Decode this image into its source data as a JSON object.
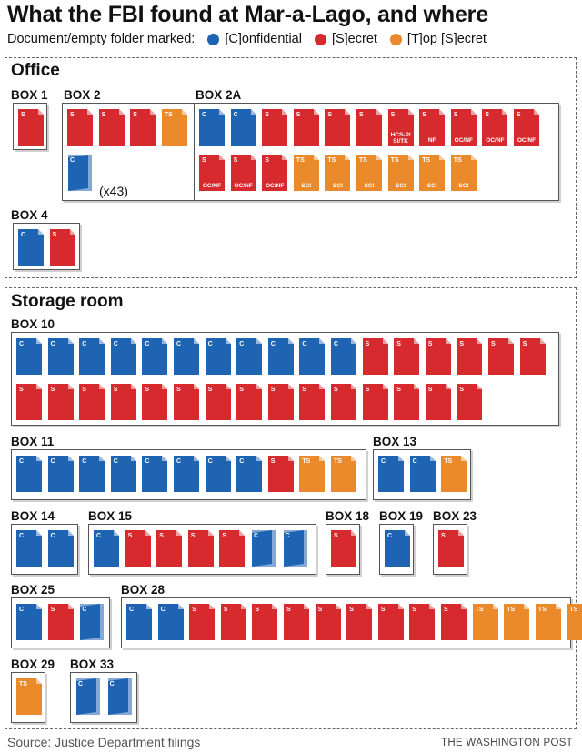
{
  "header": {
    "title": "What the FBI found at Mar-a-Lago, and where",
    "legend_prefix": "Document/empty folder marked:",
    "legend": [
      {
        "label": "[C]onfidential",
        "color": "#1f63b3"
      },
      {
        "label": "[S]ecret",
        "color": "#d62a2e"
      },
      {
        "label": "[T]op [S]ecret",
        "color": "#ea8a2a"
      }
    ]
  },
  "colors": {
    "C": "#1f63b3",
    "S": "#d62a2e",
    "TS": "#ea8a2a"
  },
  "sections": [
    {
      "title": "Office",
      "boxes": [
        {
          "label": "BOX 1",
          "docs": [
            {
              "c": "S"
            }
          ]
        },
        {
          "label": "BOX 2",
          "docs": [
            {
              "c": "S"
            },
            {
              "c": "S"
            },
            {
              "c": "S"
            },
            {
              "c": "TS"
            },
            {
              "c": "C",
              "folder": true
            }
          ],
          "folder_count": "(x43)"
        },
        {
          "label": "BOX 2A",
          "docs": [
            {
              "c": "C"
            },
            {
              "c": "C"
            },
            {
              "c": "S"
            },
            {
              "c": "S"
            },
            {
              "c": "S"
            },
            {
              "c": "S"
            },
            {
              "c": "S",
              "sub": "HCS-P/ SI/TK"
            },
            {
              "c": "S",
              "sub": "NF"
            },
            {
              "c": "S",
              "sub": "OC/NF"
            },
            {
              "c": "S",
              "sub": "OC/NF"
            },
            {
              "c": "S",
              "sub": "OC/NF"
            },
            {
              "c": "S",
              "sub": "OC/NF"
            },
            {
              "c": "S",
              "sub": "OC/NF"
            },
            {
              "c": "S",
              "sub": "OC/NF"
            },
            {
              "c": "TS",
              "sub": "SCI"
            },
            {
              "c": "TS",
              "sub": "SCI"
            },
            {
              "c": "TS",
              "sub": "SCI"
            },
            {
              "c": "TS",
              "sub": "SCI"
            },
            {
              "c": "TS",
              "sub": "SCI"
            },
            {
              "c": "TS",
              "sub": "SCI"
            }
          ]
        },
        {
          "label": "BOX 4",
          "docs": [
            {
              "c": "C"
            },
            {
              "c": "S"
            }
          ]
        }
      ]
    },
    {
      "title": "Storage room",
      "boxes": [
        {
          "label": "BOX 10",
          "docs": [
            {
              "c": "C"
            },
            {
              "c": "C"
            },
            {
              "c": "C"
            },
            {
              "c": "C"
            },
            {
              "c": "C"
            },
            {
              "c": "C"
            },
            {
              "c": "C"
            },
            {
              "c": "C"
            },
            {
              "c": "C"
            },
            {
              "c": "C"
            },
            {
              "c": "C"
            },
            {
              "c": "S"
            },
            {
              "c": "S"
            },
            {
              "c": "S"
            },
            {
              "c": "S"
            },
            {
              "c": "S"
            },
            {
              "c": "S"
            },
            {
              "c": "S"
            },
            {
              "c": "S"
            },
            {
              "c": "S"
            },
            {
              "c": "S"
            },
            {
              "c": "S"
            },
            {
              "c": "S"
            },
            {
              "c": "S"
            },
            {
              "c": "S"
            },
            {
              "c": "S"
            },
            {
              "c": "S"
            },
            {
              "c": "S"
            },
            {
              "c": "S"
            },
            {
              "c": "S"
            },
            {
              "c": "S"
            },
            {
              "c": "S"
            }
          ]
        },
        {
          "label": "BOX 11",
          "docs": [
            {
              "c": "C"
            },
            {
              "c": "C"
            },
            {
              "c": "C"
            },
            {
              "c": "C"
            },
            {
              "c": "C"
            },
            {
              "c": "C"
            },
            {
              "c": "C"
            },
            {
              "c": "C"
            },
            {
              "c": "S"
            },
            {
              "c": "TS"
            },
            {
              "c": "TS"
            }
          ]
        },
        {
          "label": "BOX 13",
          "docs": [
            {
              "c": "C"
            },
            {
              "c": "C"
            },
            {
              "c": "TS"
            }
          ]
        },
        {
          "label": "BOX 14",
          "docs": [
            {
              "c": "C"
            },
            {
              "c": "C"
            }
          ]
        },
        {
          "label": "BOX 15",
          "docs": [
            {
              "c": "C"
            },
            {
              "c": "S"
            },
            {
              "c": "S"
            },
            {
              "c": "S"
            },
            {
              "c": "S"
            },
            {
              "c": "C",
              "folder": true
            },
            {
              "c": "C",
              "folder": true
            }
          ]
        },
        {
          "label": "BOX 18",
          "docs": [
            {
              "c": "S"
            }
          ]
        },
        {
          "label": "BOX 19",
          "docs": [
            {
              "c": "C"
            }
          ]
        },
        {
          "label": "BOX 23",
          "docs": [
            {
              "c": "S"
            }
          ]
        },
        {
          "label": "BOX 25",
          "docs": [
            {
              "c": "C"
            },
            {
              "c": "S"
            },
            {
              "c": "C",
              "folder": true
            }
          ]
        },
        {
          "label": "BOX 28",
          "docs": [
            {
              "c": "C"
            },
            {
              "c": "C"
            },
            {
              "c": "S"
            },
            {
              "c": "S"
            },
            {
              "c": "S"
            },
            {
              "c": "S"
            },
            {
              "c": "S"
            },
            {
              "c": "S"
            },
            {
              "c": "S"
            },
            {
              "c": "S"
            },
            {
              "c": "S"
            },
            {
              "c": "TS"
            },
            {
              "c": "TS"
            },
            {
              "c": "TS"
            },
            {
              "c": "TS"
            }
          ]
        },
        {
          "label": "BOX 29",
          "docs": [
            {
              "c": "TS"
            }
          ]
        },
        {
          "label": "BOX 33",
          "docs": [
            {
              "c": "C",
              "folder": true
            },
            {
              "c": "C",
              "folder": true
            }
          ]
        }
      ]
    }
  ],
  "footer": {
    "source": "Source: Justice Department filings",
    "credit": "THE WASHINGTON POST"
  }
}
